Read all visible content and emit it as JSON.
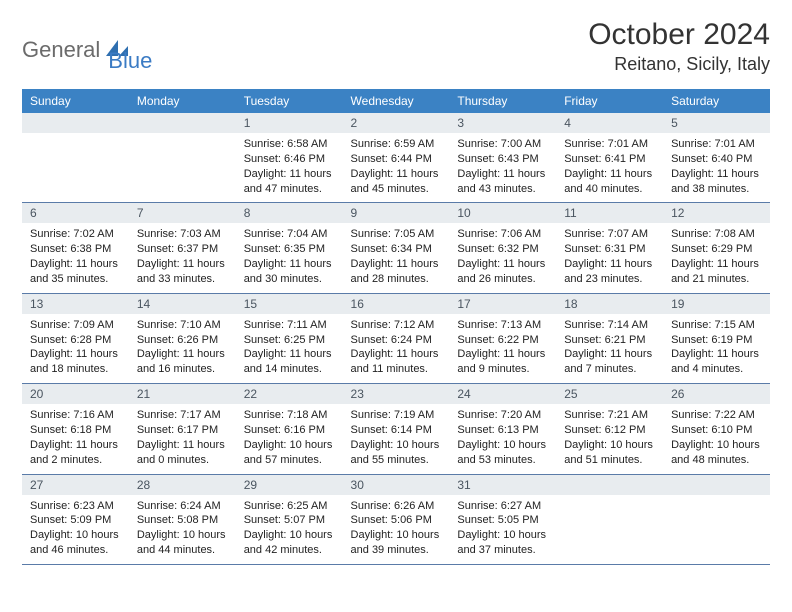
{
  "logo": {
    "general": "General",
    "blue": "Blue",
    "icon_color": "#2f6fb0"
  },
  "title": "October 2024",
  "location": "Reitano, Sicily, Italy",
  "header_bg": "#3b82c4",
  "header_fg": "#ffffff",
  "daynum_bg": "#e8ecef",
  "daynum_fg": "#4a5560",
  "border_color": "#5a7ba8",
  "text_color": "#222222",
  "days_of_week": [
    "Sunday",
    "Monday",
    "Tuesday",
    "Wednesday",
    "Thursday",
    "Friday",
    "Saturday"
  ],
  "weeks": [
    [
      null,
      null,
      {
        "n": "1",
        "sunrise": "6:58 AM",
        "sunset": "6:46 PM",
        "day_h": "11",
        "day_m": "47"
      },
      {
        "n": "2",
        "sunrise": "6:59 AM",
        "sunset": "6:44 PM",
        "day_h": "11",
        "day_m": "45"
      },
      {
        "n": "3",
        "sunrise": "7:00 AM",
        "sunset": "6:43 PM",
        "day_h": "11",
        "day_m": "43"
      },
      {
        "n": "4",
        "sunrise": "7:01 AM",
        "sunset": "6:41 PM",
        "day_h": "11",
        "day_m": "40"
      },
      {
        "n": "5",
        "sunrise": "7:01 AM",
        "sunset": "6:40 PM",
        "day_h": "11",
        "day_m": "38"
      }
    ],
    [
      {
        "n": "6",
        "sunrise": "7:02 AM",
        "sunset": "6:38 PM",
        "day_h": "11",
        "day_m": "35"
      },
      {
        "n": "7",
        "sunrise": "7:03 AM",
        "sunset": "6:37 PM",
        "day_h": "11",
        "day_m": "33"
      },
      {
        "n": "8",
        "sunrise": "7:04 AM",
        "sunset": "6:35 PM",
        "day_h": "11",
        "day_m": "30"
      },
      {
        "n": "9",
        "sunrise": "7:05 AM",
        "sunset": "6:34 PM",
        "day_h": "11",
        "day_m": "28"
      },
      {
        "n": "10",
        "sunrise": "7:06 AM",
        "sunset": "6:32 PM",
        "day_h": "11",
        "day_m": "26"
      },
      {
        "n": "11",
        "sunrise": "7:07 AM",
        "sunset": "6:31 PM",
        "day_h": "11",
        "day_m": "23"
      },
      {
        "n": "12",
        "sunrise": "7:08 AM",
        "sunset": "6:29 PM",
        "day_h": "11",
        "day_m": "21"
      }
    ],
    [
      {
        "n": "13",
        "sunrise": "7:09 AM",
        "sunset": "6:28 PM",
        "day_h": "11",
        "day_m": "18"
      },
      {
        "n": "14",
        "sunrise": "7:10 AM",
        "sunset": "6:26 PM",
        "day_h": "11",
        "day_m": "16"
      },
      {
        "n": "15",
        "sunrise": "7:11 AM",
        "sunset": "6:25 PM",
        "day_h": "11",
        "day_m": "14"
      },
      {
        "n": "16",
        "sunrise": "7:12 AM",
        "sunset": "6:24 PM",
        "day_h": "11",
        "day_m": "11"
      },
      {
        "n": "17",
        "sunrise": "7:13 AM",
        "sunset": "6:22 PM",
        "day_h": "11",
        "day_m": "9"
      },
      {
        "n": "18",
        "sunrise": "7:14 AM",
        "sunset": "6:21 PM",
        "day_h": "11",
        "day_m": "7"
      },
      {
        "n": "19",
        "sunrise": "7:15 AM",
        "sunset": "6:19 PM",
        "day_h": "11",
        "day_m": "4"
      }
    ],
    [
      {
        "n": "20",
        "sunrise": "7:16 AM",
        "sunset": "6:18 PM",
        "day_h": "11",
        "day_m": "2"
      },
      {
        "n": "21",
        "sunrise": "7:17 AM",
        "sunset": "6:17 PM",
        "day_h": "11",
        "day_m": "0"
      },
      {
        "n": "22",
        "sunrise": "7:18 AM",
        "sunset": "6:16 PM",
        "day_h": "10",
        "day_m": "57"
      },
      {
        "n": "23",
        "sunrise": "7:19 AM",
        "sunset": "6:14 PM",
        "day_h": "10",
        "day_m": "55"
      },
      {
        "n": "24",
        "sunrise": "7:20 AM",
        "sunset": "6:13 PM",
        "day_h": "10",
        "day_m": "53"
      },
      {
        "n": "25",
        "sunrise": "7:21 AM",
        "sunset": "6:12 PM",
        "day_h": "10",
        "day_m": "51"
      },
      {
        "n": "26",
        "sunrise": "7:22 AM",
        "sunset": "6:10 PM",
        "day_h": "10",
        "day_m": "48"
      }
    ],
    [
      {
        "n": "27",
        "sunrise": "6:23 AM",
        "sunset": "5:09 PM",
        "day_h": "10",
        "day_m": "46"
      },
      {
        "n": "28",
        "sunrise": "6:24 AM",
        "sunset": "5:08 PM",
        "day_h": "10",
        "day_m": "44"
      },
      {
        "n": "29",
        "sunrise": "6:25 AM",
        "sunset": "5:07 PM",
        "day_h": "10",
        "day_m": "42"
      },
      {
        "n": "30",
        "sunrise": "6:26 AM",
        "sunset": "5:06 PM",
        "day_h": "10",
        "day_m": "39"
      },
      {
        "n": "31",
        "sunrise": "6:27 AM",
        "sunset": "5:05 PM",
        "day_h": "10",
        "day_m": "37"
      },
      null,
      null
    ]
  ]
}
